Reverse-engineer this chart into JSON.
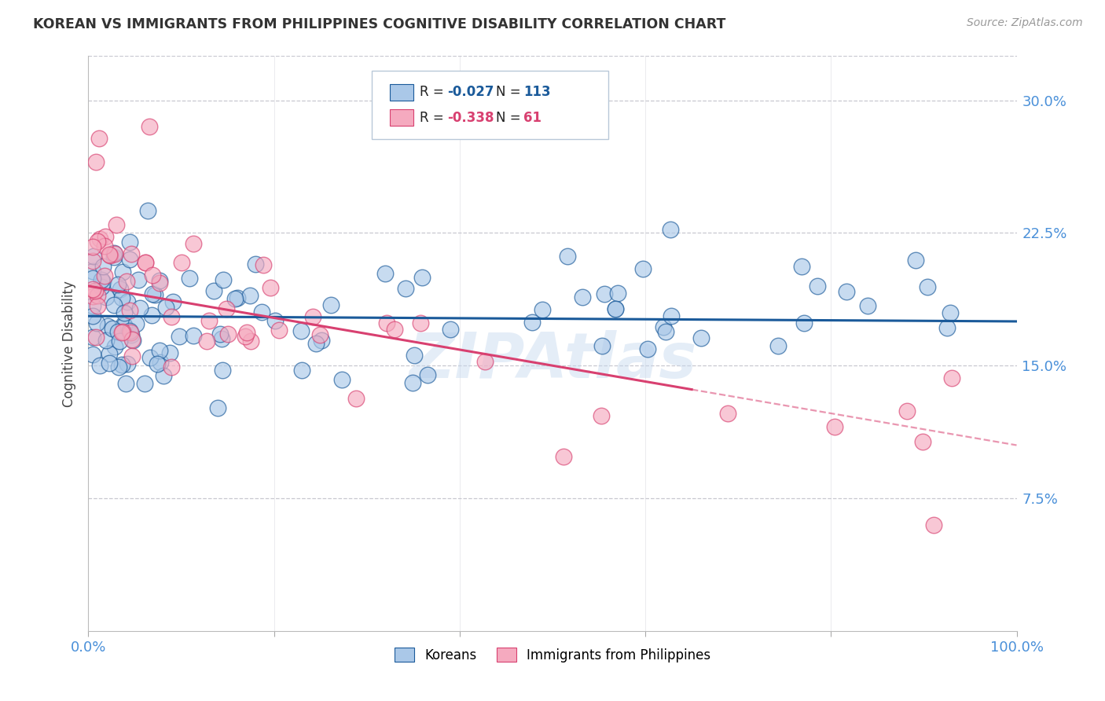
{
  "title": "KOREAN VS IMMIGRANTS FROM PHILIPPINES COGNITIVE DISABILITY CORRELATION CHART",
  "source_text": "Source: ZipAtlas.com",
  "ylabel": "Cognitive Disability",
  "watermark": "ZIPAtlas",
  "legend_labels": [
    "Koreans",
    "Immigrants from Philippines"
  ],
  "legend_R": [
    -0.027,
    -0.338
  ],
  "legend_N": [
    113,
    61
  ],
  "scatter_color_blue": "#aac8e8",
  "scatter_color_pink": "#f5aabf",
  "line_color_blue": "#1a5a9a",
  "line_color_pink": "#d84070",
  "background_color": "#ffffff",
  "grid_color": "#c8c8d0",
  "axis_label_color": "#4a90d9",
  "title_color": "#333333",
  "xlim": [
    0.0,
    1.0
  ],
  "ylim": [
    0.0,
    0.325
  ],
  "yticks": [
    0.075,
    0.15,
    0.225,
    0.3
  ],
  "ytick_labels": [
    "7.5%",
    "15.0%",
    "22.5%",
    "30.0%"
  ],
  "xticks": [
    0.0,
    0.2,
    0.4,
    0.6,
    0.8,
    1.0
  ],
  "xtick_labels": [
    "0.0%",
    "",
    "",
    "",
    "",
    "100.0%"
  ],
  "blue_intercept": 0.178,
  "blue_slope": -0.003,
  "pink_intercept": 0.195,
  "pink_slope": -0.09,
  "figsize": [
    14.06,
    8.92
  ],
  "dpi": 100
}
